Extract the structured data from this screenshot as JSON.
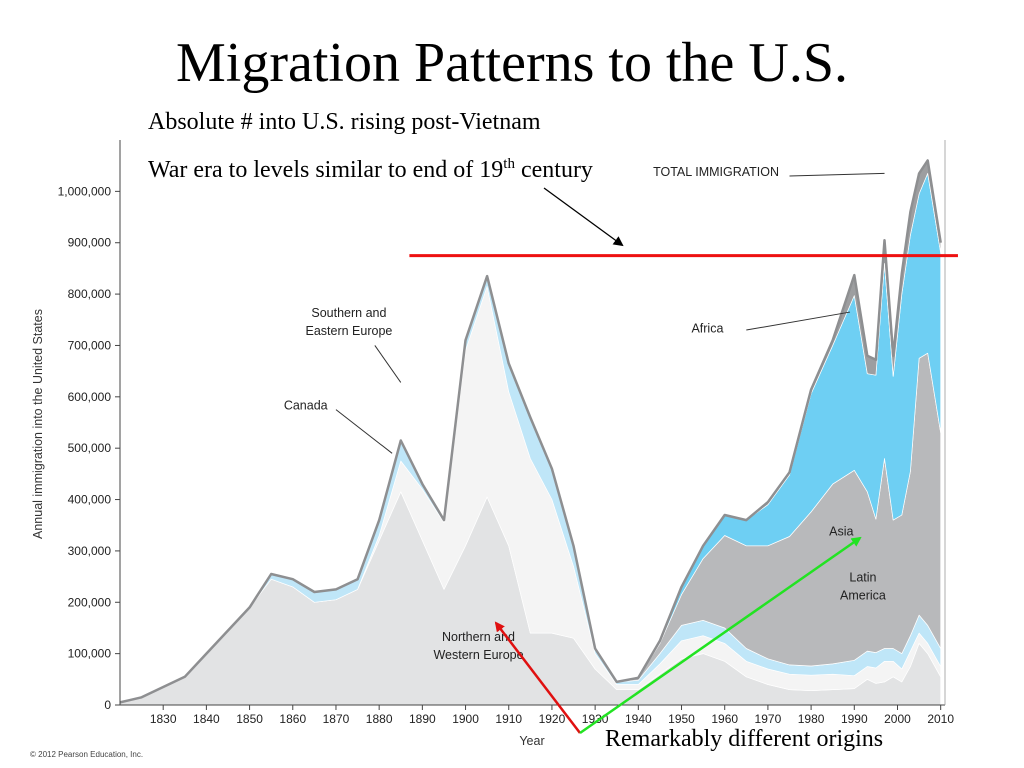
{
  "slide": {
    "title": "Migration Patterns to the U.S.",
    "subtitle_line1": "Absolute # into U.S. rising post-Vietnam",
    "subtitle_line2_pre": "War era to levels similar to end of 19",
    "subtitle_line2_sup": "th",
    "subtitle_line2_post": " century",
    "caption": "Remarkably different origins",
    "copyright": "© 2012 Pearson Education, Inc."
  },
  "colors": {
    "northern_western_europe": "#e2e3e4",
    "southern_eastern_europe": "#f4f4f4",
    "canada": "#bfe6f8",
    "latin_america": "#b8b9bb",
    "asia": "#6ecff3",
    "africa": "#9d9ea0",
    "reference_line": "#ee1111",
    "arrow_red": "#e01010",
    "arrow_green": "#22e322",
    "arrow_black": "#000000"
  },
  "chart_data": {
    "type": "area",
    "xlabel": "Year",
    "ylabel": "Annual immigration into the United States",
    "xlim": [
      1820,
      2010
    ],
    "ylim": [
      0,
      1100000
    ],
    "x_ticks": [
      1830,
      1840,
      1850,
      1860,
      1870,
      1880,
      1890,
      1900,
      1910,
      1920,
      1930,
      1940,
      1950,
      1960,
      1970,
      1980,
      1990,
      2000,
      2010
    ],
    "y_ticks": [
      0,
      100000,
      200000,
      300000,
      400000,
      500000,
      600000,
      700000,
      800000,
      900000,
      1000000
    ],
    "y_tick_labels": [
      "0",
      "100,000",
      "200,000",
      "300,000",
      "400,000",
      "500,000",
      "600,000",
      "700,000",
      "800,000",
      "900,000",
      "1,000,000"
    ],
    "x": [
      1820,
      1825,
      1830,
      1835,
      1840,
      1845,
      1850,
      1855,
      1860,
      1865,
      1870,
      1875,
      1880,
      1885,
      1890,
      1895,
      1900,
      1905,
      1910,
      1915,
      1920,
      1925,
      1930,
      1935,
      1940,
      1945,
      1950,
      1955,
      1960,
      1965,
      1970,
      1975,
      1980,
      1985,
      1990,
      1993,
      1995,
      1997,
      1999,
      2001,
      2003,
      2005,
      2007,
      2010
    ],
    "series": [
      {
        "name": "Northern and Western Europe",
        "color_key": "northern_western_europe",
        "values": [
          5000,
          15000,
          35000,
          55000,
          100000,
          145000,
          190000,
          245000,
          230000,
          200000,
          205000,
          225000,
          320000,
          415000,
          320000,
          225000,
          310000,
          405000,
          310000,
          140000,
          140000,
          130000,
          70000,
          30000,
          30000,
          60000,
          90000,
          100000,
          85000,
          55000,
          40000,
          30000,
          28000,
          30000,
          32000,
          50000,
          42000,
          45000,
          55000,
          45000,
          75000,
          120000,
          100000,
          55000
        ]
      },
      {
        "name": "Southern and Eastern Europe",
        "color_key": "southern_eastern_europe",
        "values": [
          0,
          0,
          0,
          0,
          0,
          0,
          0,
          0,
          0,
          0,
          0,
          0,
          10000,
          60000,
          100000,
          130000,
          380000,
          410000,
          300000,
          340000,
          260000,
          140000,
          30000,
          10000,
          10000,
          20000,
          35000,
          35000,
          35000,
          30000,
          30000,
          30000,
          30000,
          30000,
          25000,
          25000,
          30000,
          40000,
          30000,
          25000,
          30000,
          20000,
          20000,
          20000
        ]
      },
      {
        "name": "Canada",
        "color_key": "canada",
        "values": [
          0,
          0,
          0,
          0,
          0,
          0,
          0,
          10000,
          15000,
          20000,
          20000,
          20000,
          30000,
          40000,
          10000,
          5000,
          20000,
          20000,
          55000,
          80000,
          60000,
          40000,
          10000,
          5000,
          8000,
          20000,
          30000,
          30000,
          30000,
          25000,
          20000,
          18000,
          18000,
          20000,
          30000,
          30000,
          30000,
          25000,
          25000,
          30000,
          30000,
          35000,
          35000,
          35000
        ]
      },
      {
        "name": "Latin America",
        "color_key": "latin_america",
        "values": [
          0,
          0,
          0,
          0,
          0,
          0,
          0,
          0,
          0,
          0,
          0,
          0,
          0,
          0,
          0,
          0,
          0,
          0,
          0,
          0,
          0,
          0,
          0,
          0,
          5000,
          20000,
          60000,
          120000,
          180000,
          200000,
          220000,
          250000,
          300000,
          350000,
          370000,
          310000,
          260000,
          370000,
          250000,
          270000,
          320000,
          500000,
          530000,
          420000
        ]
      },
      {
        "name": "Asia",
        "color_key": "asia",
        "values": [
          0,
          0,
          0,
          0,
          0,
          0,
          0,
          0,
          0,
          0,
          0,
          0,
          0,
          0,
          0,
          0,
          0,
          0,
          0,
          0,
          0,
          0,
          0,
          0,
          0,
          5000,
          15000,
          25000,
          40000,
          50000,
          80000,
          120000,
          230000,
          270000,
          340000,
          230000,
          280000,
          380000,
          280000,
          430000,
          460000,
          320000,
          350000,
          350000
        ]
      },
      {
        "name": "Africa",
        "color_key": "africa",
        "values": [
          0,
          0,
          0,
          0,
          0,
          0,
          0,
          0,
          0,
          0,
          0,
          0,
          0,
          0,
          0,
          0,
          0,
          0,
          0,
          0,
          0,
          0,
          0,
          0,
          0,
          0,
          0,
          0,
          0,
          0,
          5000,
          5000,
          8000,
          10000,
          40000,
          35000,
          30000,
          45000,
          40000,
          40000,
          45000,
          40000,
          25000,
          20000
        ]
      }
    ],
    "labels": [
      {
        "text": "Northern and",
        "x": 1903,
        "y": 125000
      },
      {
        "text": "Western Europe",
        "x": 1903,
        "y": 90000
      },
      {
        "text": "Southern and",
        "x": 1873,
        "y": 755000
      },
      {
        "text": "Eastern Europe",
        "x": 1873,
        "y": 720000
      },
      {
        "text": "Canada",
        "x": 1863,
        "y": 575000
      },
      {
        "text": "Latin",
        "x": 1992,
        "y": 240000
      },
      {
        "text": "America",
        "x": 1992,
        "y": 205000
      },
      {
        "text": "Asia",
        "x": 1987,
        "y": 330000
      },
      {
        "text": "Africa",
        "x": 1956,
        "y": 725000
      },
      {
        "text": "TOTAL IMMIGRATION",
        "x": 1958,
        "y": 1030000
      }
    ],
    "reference_line": {
      "value": 875000,
      "from_x": 1887,
      "to_x": 2014
    },
    "grid": false
  }
}
